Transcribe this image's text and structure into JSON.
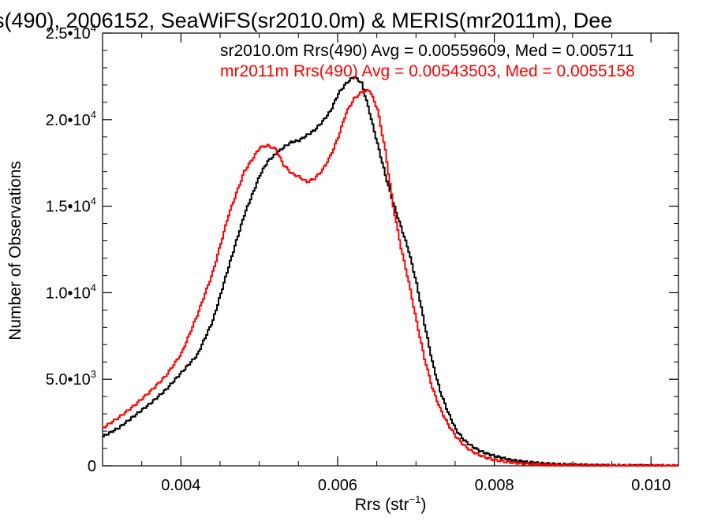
{
  "chart_data": {
    "type": "line",
    "title": "s(490), 2006152, SeaWiFS(sr2010.0m) & MERIS(mr2011m), Dee",
    "xlabel": "Rrs (str",
    "xlabel_sup": "−1",
    "xlabel_tail": ")",
    "ylabel": "Number of Observations",
    "xlim": [
      0.003,
      0.01035
    ],
    "ylim": [
      0,
      25000
    ],
    "x_ticks": [
      0.004,
      0.006,
      0.008,
      0.01
    ],
    "x_tick_labels": [
      "0.004",
      "0.006",
      "0.008",
      "0.010"
    ],
    "y_ticks": [
      0,
      5000,
      10000,
      15000,
      20000,
      25000
    ],
    "y_tick_labels": [
      {
        "mant": "0",
        "exp": ""
      },
      {
        "mant": "5.0•10",
        "exp": "3"
      },
      {
        "mant": "1.0•10",
        "exp": "4"
      },
      {
        "mant": "1.5•10",
        "exp": "4"
      },
      {
        "mant": "2.0•10",
        "exp": "4"
      },
      {
        "mant": "2.5•10",
        "exp": "4"
      }
    ],
    "grid": false,
    "annotations": [
      {
        "text": "sr2010.0m Rrs(490) Avg = 0.00559609, Med = 0.005711",
        "color": "#000000"
      },
      {
        "text": "mr2011m Rrs(490) Avg = 0.00543503, Med = 0.0055158",
        "color": "#ff0000"
      }
    ],
    "series": [
      {
        "color": "#000000",
        "x": [
          0.003,
          0.0032,
          0.0034,
          0.0036,
          0.0038,
          0.004,
          0.0042,
          0.0044,
          0.0046,
          0.0048,
          0.005,
          0.0051,
          0.0052,
          0.0053,
          0.0054,
          0.0055,
          0.0056,
          0.0057,
          0.0058,
          0.0059,
          0.006,
          0.0061,
          0.0062,
          0.0063,
          0.0064,
          0.0065,
          0.0066,
          0.0067,
          0.0068,
          0.0069,
          0.007,
          0.0071,
          0.0072,
          0.0073,
          0.0074,
          0.0075,
          0.0076,
          0.0077,
          0.0078,
          0.0079,
          0.008,
          0.0082,
          0.0084,
          0.0086,
          0.0088,
          0.009,
          0.0093,
          0.0096,
          0.01,
          0.01035
        ],
        "y": [
          1700,
          2200,
          2900,
          3600,
          4400,
          5400,
          6400,
          8400,
          11500,
          14500,
          16800,
          17600,
          18000,
          18400,
          18700,
          18800,
          19100,
          19400,
          19900,
          20500,
          21500,
          22100,
          22500,
          22100,
          20400,
          18600,
          16800,
          15200,
          13800,
          12400,
          10500,
          8200,
          6000,
          4300,
          3100,
          2100,
          1500,
          1150,
          880,
          700,
          560,
          340,
          220,
          140,
          90,
          60,
          30,
          15,
          5,
          0
        ]
      },
      {
        "color": "#ff0000",
        "x": [
          0.003,
          0.0032,
          0.0034,
          0.0036,
          0.0038,
          0.004,
          0.0042,
          0.0044,
          0.0046,
          0.0048,
          0.005,
          0.0051,
          0.0052,
          0.0053,
          0.0054,
          0.0055,
          0.0056,
          0.0057,
          0.0058,
          0.0059,
          0.006,
          0.0061,
          0.0062,
          0.0063,
          0.0064,
          0.0065,
          0.0066,
          0.0067,
          0.0068,
          0.0069,
          0.007,
          0.0071,
          0.0072,
          0.0073,
          0.0074,
          0.0075,
          0.0076,
          0.0077,
          0.0078,
          0.0079,
          0.008,
          0.0082,
          0.0084,
          0.0086,
          0.0088,
          0.009,
          0.0093,
          0.0096,
          0.01,
          0.01035
        ],
        "y": [
          2200,
          2800,
          3500,
          4300,
          5200,
          6500,
          8700,
          11200,
          14500,
          17000,
          18400,
          18500,
          18300,
          17400,
          16900,
          16700,
          16400,
          16600,
          17100,
          17900,
          19000,
          20400,
          21200,
          21600,
          21700,
          20600,
          18200,
          15000,
          12600,
          10600,
          8300,
          6200,
          4500,
          3300,
          2400,
          1700,
          1200,
          850,
          620,
          450,
          330,
          190,
          110,
          70,
          40,
          25,
          12,
          6,
          2,
          0
        ]
      }
    ]
  }
}
